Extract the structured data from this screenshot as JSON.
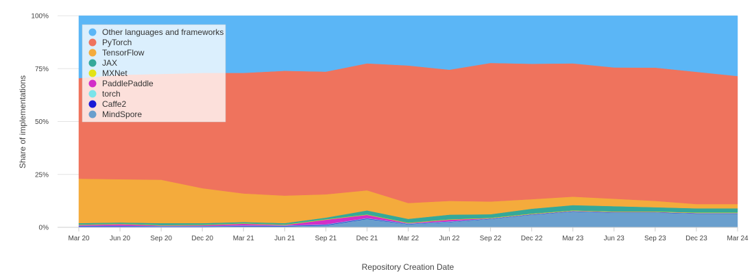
{
  "chart_data": {
    "type": "area",
    "stacked": true,
    "normalized": true,
    "title": "",
    "xlabel": "Repository Creation Date",
    "ylabel": "Share of implementations",
    "ylim": [
      0,
      100
    ],
    "y_ticks": [
      "0%",
      "25%",
      "50%",
      "75%",
      "100%"
    ],
    "grid": "horizontal",
    "legend_position": "top-left",
    "x": [
      "Mar 20",
      "Jun 20",
      "Sep 20",
      "Dec 20",
      "Mar 21",
      "Jun 21",
      "Sep 21",
      "Dec 21",
      "Mar 22",
      "Jun 22",
      "Sep 22",
      "Dec 22",
      "Mar 23",
      "Jun 23",
      "Sep 23",
      "Dec 23",
      "Mar 24"
    ],
    "series": [
      {
        "name": "MindSpore",
        "color": "#6a9fcd",
        "values": [
          0.3,
          0.3,
          0.3,
          0.3,
          0.5,
          0.5,
          1,
          4,
          1.5,
          2.5,
          4,
          6,
          7.5,
          7,
          7,
          6.5,
          6.5
        ]
      },
      {
        "name": "Caffe2",
        "color": "#1a1ad6",
        "values": [
          0.3,
          0.3,
          0.2,
          0.2,
          0.2,
          0.2,
          0.2,
          0.2,
          0.1,
          0.1,
          0.1,
          0.1,
          0.1,
          0.1,
          0.1,
          0.1,
          0.1
        ]
      },
      {
        "name": "torch",
        "color": "#7ae4ea",
        "values": [
          0.2,
          0.2,
          0.2,
          0.2,
          0.2,
          0.2,
          0.2,
          0.2,
          0.2,
          0.2,
          0.1,
          0.1,
          0.1,
          0.1,
          0.1,
          0.1,
          0.1
        ]
      },
      {
        "name": "PaddlePaddle",
        "color": "#d22ec8",
        "values": [
          0.3,
          0.7,
          0.2,
          0.3,
          0.8,
          0.2,
          2.2,
          1.5,
          0.2,
          0.8,
          0.1,
          0.1,
          0.1,
          0.1,
          0.1,
          0.1,
          0.1
        ]
      },
      {
        "name": "MXNet",
        "color": "#e3e314",
        "values": [
          0.2,
          0.2,
          0.2,
          0.2,
          0.2,
          0.2,
          0.2,
          0.2,
          0.2,
          0.2,
          0.2,
          0.2,
          0.2,
          0.2,
          0.2,
          0.2,
          0.2
        ]
      },
      {
        "name": "JAX",
        "color": "#35a89a",
        "values": [
          0.7,
          0.6,
          0.9,
          0.8,
          0.6,
          0.7,
          0.8,
          1.9,
          1.8,
          2.2,
          1.7,
          2.3,
          2.5,
          2.5,
          2,
          2,
          2
        ]
      },
      {
        "name": "TensorFlow",
        "color": "#f4ab3c",
        "values": [
          21,
          20.5,
          20.5,
          16.5,
          13.5,
          13,
          11,
          9.5,
          7.5,
          6.5,
          6,
          4.5,
          4,
          3.5,
          3,
          2,
          2
        ]
      },
      {
        "name": "PyTorch",
        "color": "#ef735d",
        "values": [
          47.5,
          49.5,
          50,
          54.5,
          57,
          59,
          58,
          60,
          65,
          62,
          65.5,
          64,
          63,
          62,
          63,
          62.5,
          60.5
        ]
      },
      {
        "name": "Other languages and frameworks",
        "color": "#5bb6f6",
        "values": [
          29.5,
          28,
          27.5,
          27,
          27,
          26,
          26.4,
          22.5,
          23.5,
          25.5,
          22.3,
          22.7,
          22.5,
          24.4,
          24.5,
          26.5,
          28.5
        ]
      }
    ]
  },
  "legend_order": [
    "Other languages and frameworks",
    "PyTorch",
    "TensorFlow",
    "JAX",
    "MXNet",
    "PaddlePaddle",
    "torch",
    "Caffe2",
    "MindSpore"
  ]
}
